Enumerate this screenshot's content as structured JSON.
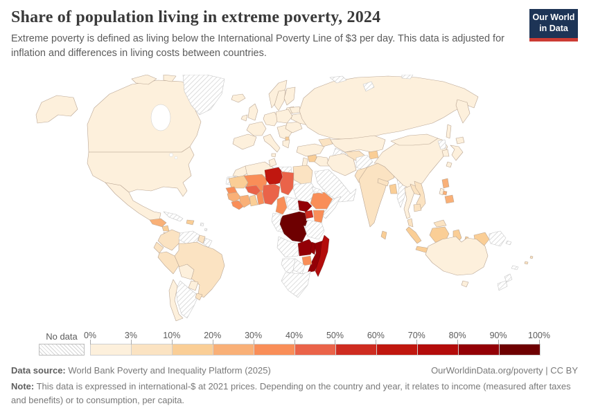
{
  "header": {
    "title": "Share of population living in extreme poverty, 2024",
    "subtitle": "Extreme poverty is defined as living below the International Poverty Line of $3 per day. This data is adjusted for inflation and differences in living costs between countries.",
    "logo": {
      "line1": "Our World",
      "line2": "in Data",
      "bg": "#1d3456",
      "accent": "#cc3b33"
    }
  },
  "legend": {
    "no_data_label": "No data",
    "tick_labels": [
      "0%",
      "3%",
      "10%",
      "20%",
      "30%",
      "40%",
      "50%",
      "60%",
      "70%",
      "80%",
      "90%",
      "100%"
    ]
  },
  "footer": {
    "source_label": "Data source:",
    "source_text": " World Bank Poverty and Inequality Platform (2025)",
    "credit": "OurWorldinData.org/poverty | CC BY",
    "note_label": "Note:",
    "note_text": " This data is expressed in international-$ at 2021 prices. Depending on the country and year, it relates to income (measured after taxes and benefits) or to consumption, per capita."
  },
  "chart_data": {
    "type": "choropleth-map",
    "title": "Share of population living in extreme poverty, 2024",
    "year": 2024,
    "unit": "% of population below $3/day",
    "legend_position": "bottom",
    "bins": [
      {
        "range": "0-3%",
        "color": "#FDF0DC"
      },
      {
        "range": "3-10%",
        "color": "#FBE3C2"
      },
      {
        "range": "10-20%",
        "color": "#FACE96"
      },
      {
        "range": "20-30%",
        "color": "#F9B077"
      },
      {
        "range": "30-40%",
        "color": "#F98E58"
      },
      {
        "range": "40-50%",
        "color": "#EA6349"
      },
      {
        "range": "50-60%",
        "color": "#CE2C20"
      },
      {
        "range": "60-70%",
        "color": "#C0170F"
      },
      {
        "range": "70-80%",
        "color": "#B30C0B"
      },
      {
        "range": "80-90%",
        "color": "#930006"
      },
      {
        "range": "90-100%",
        "color": "#6E0001"
      }
    ],
    "no_data": {
      "label": "No data",
      "pattern": "diagonal-hatch"
    },
    "countries": {
      "alaska": "0-3%",
      "canada": "0-3%",
      "canada-arctic-1": "0-3%",
      "canada-arctic-2": "0-3%",
      "united-states": "0-3%",
      "mexico": "0-3%",
      "greenland": "no-data",
      "guatemala-honduras": "20-30%",
      "nicaragua": "10-20%",
      "costa-rica-panama": "0-3%",
      "cuba": "no-data",
      "hispaniola": "10-20%",
      "caribbean-1": "no-data",
      "caribbean-2": "no-data",
      "colombia": "3-10%",
      "venezuela": "no-data",
      "guyana": "3-10%",
      "suriname-guiana": "no-data",
      "ecuador": "3-10%",
      "peru": "3-10%",
      "brazil": "3-10%",
      "bolivia": "0-3%",
      "paraguay": "0-3%",
      "argentina": "no-data",
      "chile": "0-3%",
      "uruguay": "3-10%",
      "iceland": "0-3%",
      "united-kingdom": "0-3%",
      "ireland": "0-3%",
      "norway": "0-3%",
      "sweden": "0-3%",
      "finland": "0-3%",
      "baltics": "0-3%",
      "denmark": "0-3%",
      "iberia": "0-3%",
      "france": "0-3%",
      "germany": "0-3%",
      "italy": "0-3%",
      "sicily": "0-3%",
      "central-europe": "0-3%",
      "balkans": "0-3%",
      "balkan-dot": "10-20%",
      "greece": "0-3%",
      "romania": "0-3%",
      "ukraine": "0-3%",
      "belarus": "0-3%",
      "russia": "0-3%",
      "kamchatka": "0-3%",
      "sakhalin": "0-3%",
      "svalbard": "no-data",
      "novaya-zemlya": "no-data",
      "arctic-ne": "no-data",
      "kazakhstan": "0-3%",
      "uzbekistan": "3-10%",
      "turkmenistan": "no-data",
      "kyrgyz-tajik": "10-20%",
      "caucasus": "3-10%",
      "turkey": "0-3%",
      "syria": "10-20%",
      "levant": "0-3%",
      "iraq": "0-3%",
      "iran": "0-3%",
      "afghanistan": "no-data",
      "pakistan": "3-10%",
      "saudi-peninsula": "no-data",
      "india": "3-10%",
      "nepal": "3-10%",
      "bangladesh": "10-20%",
      "sri-lanka": "10-20%",
      "myanmar": "no-data",
      "thailand": "0-3%",
      "laos": "3-10%",
      "vietnam": "3-10%",
      "cambodia": "3-10%",
      "malaysia-peninsula": "3-10%",
      "malaysia-borneo": "3-10%",
      "china": "0-3%",
      "mongolia": "0-3%",
      "north-korea": "no-data",
      "south-korea": "0-3%",
      "japan-hokkaido": "0-3%",
      "japan-honshu": "0-3%",
      "japan-kyushu": "0-3%",
      "taiwan": "0-3%",
      "philippines-luzon": "20-30%",
      "philippines-visayas": "20-30%",
      "philippines-mindanao": "20-30%",
      "indonesia-sumatra": "10-20%",
      "indonesia-java": "10-20%",
      "indonesia-kalimantan": "10-20%",
      "indonesia-sulawesi": "10-20%",
      "indonesia-moluccas": "10-20%",
      "indonesia-lesser-sunda-1": "10-20%",
      "indonesia-lesser-sunda-2": "10-20%",
      "indonesia-papua": "10-20%",
      "timor": "10-20%",
      "papua-new-guinea": "no-data",
      "new-britain": "no-data",
      "australia": "0-3%",
      "tasmania": "0-3%",
      "new-zealand-north": "no-data",
      "new-zealand-south": "no-data",
      "new-caledonia": "no-data",
      "fiji": "3-10%",
      "vanuatu": "3-10%",
      "morocco": "0-3%",
      "western-sahara": "no-data",
      "algeria": "0-3%",
      "tunisia": "0-3%",
      "libya": "no-data",
      "egypt": "3-10%",
      "mauritania": "10-20%",
      "mali": "30-40%",
      "niger": "60-70%",
      "chad": "40-50%",
      "sudan": "no-data",
      "senegal": "30-40%",
      "guinea": "20-30%",
      "sierra-leone-liberia": "30-40%",
      "cote-divoire": "20-30%",
      "ghana": "10-20%",
      "togo-benin": "30-40%",
      "burkina-faso": "40-50%",
      "nigeria": "40-50%",
      "cameroon": "30-40%",
      "central-african-republic": "no-data",
      "south-sudan": "80-90%",
      "ethiopia": "30-40%",
      "eritrea": "no-data",
      "somalia": "no-data",
      "uganda": "50-60%",
      "kenya": "30-40%",
      "congo-gabon": "no-data",
      "democratic-republic-of-congo": "90-100%",
      "rwanda-burundi": "90-100%",
      "tanzania": "no-data",
      "angola": "no-data",
      "zambia": "80-90%",
      "malawi": "80-90%",
      "mozambique": "80-90%",
      "zimbabwe": "30-40%",
      "botswana": "no-data",
      "namibia": "no-data",
      "south-africa": "no-data",
      "madagascar": "70-80%"
    }
  }
}
